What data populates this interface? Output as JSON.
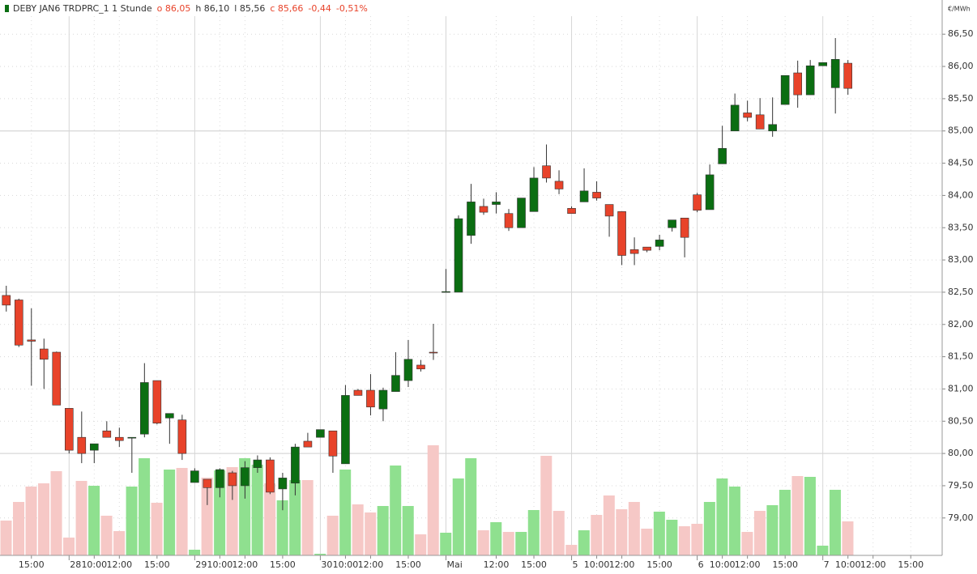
{
  "chart_data": {
    "type": "candlestick",
    "title": "DEBY JAN6 TRDPRC_1 1 Stunde",
    "ohlc_labels": [
      {
        "text": "o 86,05",
        "color": "#e8432a"
      },
      {
        "text": "h 86,10",
        "color": "#333333"
      },
      {
        "text": "l 85,56",
        "color": "#333333"
      },
      {
        "text": "c 85,66",
        "color": "#e8432a"
      },
      {
        "text": "-0,44",
        "color": "#e8432a"
      },
      {
        "text": "-0,51%",
        "color": "#e8432a"
      }
    ],
    "y_unit": "€/MWh",
    "up_color": "#0b6e12",
    "down_color": "#e8432a",
    "volume_up_color": "#8fe08f",
    "volume_down_color": "#f6c8c6",
    "open": [
      82.45,
      82.38,
      81.76,
      81.62,
      81.57,
      80.7,
      80.25,
      80.05,
      80.35,
      80.25,
      80.25,
      80.3,
      81.13,
      80.55,
      80.52,
      79.55,
      79.6,
      79.47,
      79.7,
      79.5,
      79.78,
      79.9,
      79.45,
      79.54,
      80.19,
      80.25,
      80.35,
      79.84,
      80.98,
      80.98,
      80.69,
      80.96,
      81.13,
      81.37,
      81.57,
      82.5,
      82.5,
      83.38,
      83.83,
      83.86,
      83.72,
      83.5,
      83.75,
      84.46,
      84.22,
      83.8,
      83.9,
      84.05,
      83.86,
      83.75,
      83.16,
      83.2,
      83.21,
      83.5,
      83.65,
      84.01,
      83.78,
      84.49,
      85.0,
      85.28,
      85.25,
      85.0,
      85.41,
      85.9,
      85.56,
      86.01,
      85.67,
      86.05
    ],
    "high": [
      82.6,
      82.4,
      82.25,
      81.78,
      81.58,
      80.7,
      80.65,
      80.15,
      80.5,
      80.4,
      80.25,
      81.4,
      81.13,
      80.62,
      80.6,
      79.77,
      79.6,
      79.77,
      79.73,
      79.88,
      79.97,
      79.94,
      79.7,
      80.15,
      80.32,
      80.37,
      80.35,
      81.06,
      81.0,
      81.23,
      81.02,
      81.57,
      81.76,
      81.45,
      82.01,
      82.86,
      83.69,
      84.18,
      83.95,
      84.05,
      83.79,
      83.96,
      84.44,
      84.79,
      84.39,
      83.83,
      84.42,
      84.22,
      83.86,
      83.75,
      83.35,
      83.2,
      83.39,
      83.62,
      83.65,
      84.04,
      84.48,
      85.08,
      85.58,
      85.47,
      85.51,
      85.52,
      85.86,
      86.09,
      86.1,
      86.06,
      86.44,
      86.1
    ],
    "low": [
      82.2,
      81.65,
      81.05,
      81.0,
      80.75,
      80.0,
      79.85,
      79.85,
      80.25,
      80.1,
      79.7,
      80.25,
      80.45,
      80.15,
      79.9,
      79.55,
      79.2,
      79.32,
      79.28,
      79.3,
      79.7,
      79.37,
      79.12,
      79.35,
      80.1,
      80.25,
      79.7,
      79.84,
      80.9,
      80.59,
      80.5,
      80.96,
      81.03,
      81.27,
      81.45,
      82.5,
      82.5,
      83.25,
      83.7,
      83.72,
      83.45,
      83.5,
      83.75,
      84.2,
      84.02,
      83.72,
      83.9,
      83.92,
      83.36,
      82.92,
      82.92,
      83.12,
      83.15,
      83.44,
      83.04,
      83.74,
      83.78,
      84.49,
      85.0,
      85.15,
      85.03,
      84.91,
      85.41,
      85.36,
      85.56,
      86.01,
      85.27,
      85.56
    ],
    "close": [
      82.3,
      81.68,
      81.74,
      81.46,
      80.75,
      80.05,
      80.0,
      80.15,
      80.25,
      80.2,
      80.25,
      81.1,
      80.47,
      80.62,
      80.0,
      79.73,
      79.47,
      79.75,
      79.5,
      79.78,
      79.9,
      79.4,
      79.62,
      80.1,
      80.1,
      80.37,
      79.96,
      80.9,
      80.9,
      80.72,
      80.98,
      81.21,
      81.46,
      81.31,
      81.56,
      82.51,
      83.64,
      83.9,
      83.74,
      83.9,
      83.5,
      83.96,
      84.27,
      84.27,
      84.1,
      83.72,
      84.07,
      83.96,
      83.68,
      83.07,
      83.1,
      83.15,
      83.31,
      83.62,
      83.35,
      83.77,
      84.32,
      84.73,
      85.4,
      85.21,
      85.03,
      85.1,
      85.86,
      85.56,
      86.01,
      86.06,
      86.11,
      85.66
    ],
    "volume": [
      43,
      66,
      85,
      89,
      104,
      22,
      92,
      86,
      49,
      30,
      85,
      120,
      65,
      106,
      108,
      7,
      96,
      105,
      109,
      120,
      112,
      89,
      68,
      93,
      93,
      2,
      49,
      106,
      63,
      53,
      61,
      111,
      61,
      26,
      136,
      28,
      95,
      120,
      31,
      41,
      29,
      29,
      56,
      123,
      55,
      13,
      31,
      50,
      74,
      57,
      66,
      33,
      54,
      44,
      36,
      39,
      66,
      95,
      85,
      29,
      55,
      62,
      81,
      98,
      97,
      12,
      81,
      42
    ],
    "volume_max": 686,
    "xlim": [
      -0.5,
      74.5
    ],
    "xticks": [
      {
        "value": 2,
        "label": "15:00"
      },
      {
        "value": 7,
        "label": "10:00"
      },
      {
        "value": 9,
        "label": "12:00"
      },
      {
        "value": 12,
        "label": "15:00"
      },
      {
        "value": 17,
        "label": "10:00"
      },
      {
        "value": 19,
        "label": "12:00"
      },
      {
        "value": 22,
        "label": "15:00"
      },
      {
        "value": 27,
        "label": "10:00"
      },
      {
        "value": 29,
        "label": "12:00"
      },
      {
        "value": 32,
        "label": "15:00"
      },
      {
        "value": 39,
        "label": "12:00"
      },
      {
        "value": 42,
        "label": "15:00"
      },
      {
        "value": 47,
        "label": "10:00"
      },
      {
        "value": 49,
        "label": "12:00"
      },
      {
        "value": 52,
        "label": "15:00"
      },
      {
        "value": 57,
        "label": "10:00"
      },
      {
        "value": 59,
        "label": "12:00"
      },
      {
        "value": 62,
        "label": "15:00"
      },
      {
        "value": 67,
        "label": "10:00"
      },
      {
        "value": 69,
        "label": "12:00"
      },
      {
        "value": 72,
        "label": "15:00"
      }
    ],
    "day_ticks": [
      {
        "value": 5,
        "label": "28"
      },
      {
        "value": 15,
        "label": "29"
      },
      {
        "value": 25,
        "label": "30"
      },
      {
        "value": 35,
        "label": "Mai"
      },
      {
        "value": 45,
        "label": "5"
      },
      {
        "value": 55,
        "label": "6"
      },
      {
        "value": 65,
        "label": "7"
      }
    ],
    "ylim": [
      78.42,
      87.03
    ],
    "yticks": [
      {
        "value": 79,
        "label": "79,00"
      },
      {
        "value": 79.5,
        "label": "79,50"
      },
      {
        "value": 80,
        "label": "80,00"
      },
      {
        "value": 80.5,
        "label": "80,50"
      },
      {
        "value": 81,
        "label": "81,00"
      },
      {
        "value": 81.5,
        "label": "81,50"
      },
      {
        "value": 82,
        "label": "82,00"
      },
      {
        "value": 82.5,
        "label": "82,50"
      },
      {
        "value": 83,
        "label": "83,00"
      },
      {
        "value": 83.5,
        "label": "83,50"
      },
      {
        "value": 84,
        "label": "84,00"
      },
      {
        "value": 84.5,
        "label": "84,50"
      },
      {
        "value": 85,
        "label": "85,00"
      },
      {
        "value": 85.5,
        "label": "85,50"
      },
      {
        "value": 86,
        "label": "86,00"
      },
      {
        "value": 86.5,
        "label": "86,50"
      }
    ],
    "major_gridlines": [
      80,
      82.5,
      85
    ],
    "grid": true
  }
}
